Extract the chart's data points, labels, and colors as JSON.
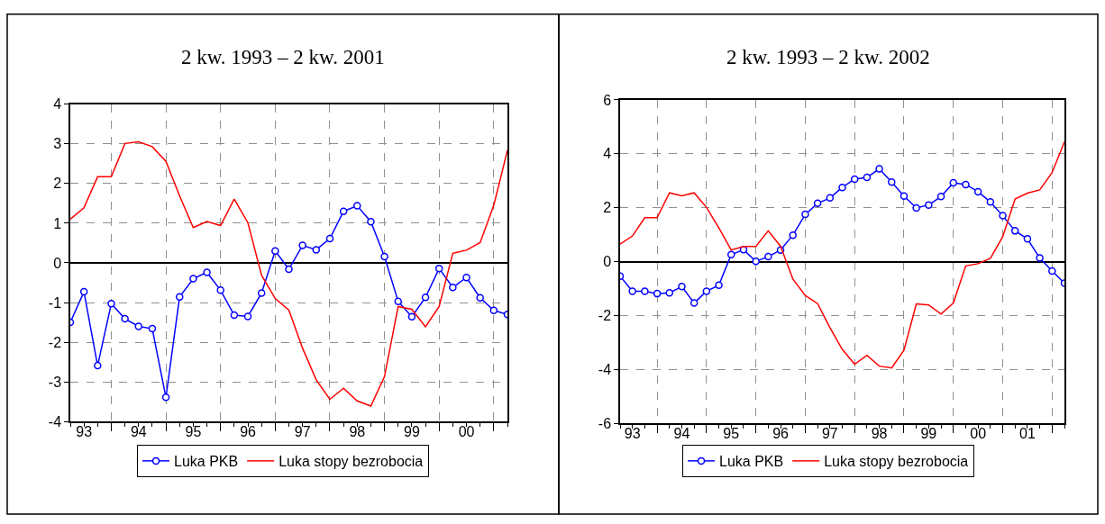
{
  "chart_data": [
    {
      "type": "line",
      "title": "2 kw. 1993 – 2 kw. 2001",
      "categories": [
        null,
        "93",
        null,
        null,
        null,
        "94",
        null,
        null,
        null,
        "95",
        null,
        null,
        null,
        "96",
        null,
        null,
        null,
        "97",
        null,
        null,
        null,
        "98",
        null,
        null,
        null,
        "99",
        null,
        null,
        null,
        "00",
        null,
        null,
        null
      ],
      "series": [
        {
          "name": "Luka PKB",
          "color": "#0000ff",
          "marker": "circle",
          "values": [
            -1.5,
            -0.73,
            -2.59,
            -1.03,
            -1.41,
            -1.6,
            -1.66,
            -3.39,
            -0.86,
            -0.4,
            -0.24,
            -0.69,
            -1.32,
            -1.35,
            -0.76,
            0.3,
            -0.16,
            0.44,
            0.33,
            0.61,
            1.3,
            1.44,
            1.04,
            0.16,
            -0.97,
            -1.36,
            -0.87,
            -0.14,
            -0.62,
            -0.37,
            -0.88,
            -1.2,
            -1.3
          ]
        },
        {
          "name": "Luka stopy bezrobocia",
          "color": "#ff0000",
          "marker": "none",
          "values": [
            1.1,
            1.39,
            2.17,
            2.17,
            3.01,
            3.05,
            2.93,
            2.56,
            1.69,
            0.89,
            1.04,
            0.94,
            1.61,
            1.01,
            -0.31,
            -0.9,
            -1.19,
            -2.15,
            -2.95,
            -3.44,
            -3.16,
            -3.48,
            -3.61,
            -2.87,
            -1.1,
            -1.17,
            -1.61,
            -1.1,
            0.24,
            0.32,
            0.51,
            1.45,
            2.84
          ]
        }
      ],
      "ylim": [
        -4,
        4
      ],
      "yticks": [
        -4,
        -3,
        -2,
        -1,
        0,
        1,
        2,
        3,
        4
      ],
      "grid": true,
      "legend": "bottom"
    },
    {
      "type": "line",
      "title": "2 kw. 1993 – 2 kw. 2002",
      "categories": [
        null,
        "93",
        null,
        null,
        null,
        "94",
        null,
        null,
        null,
        "95",
        null,
        null,
        null,
        "96",
        null,
        null,
        null,
        "97",
        null,
        null,
        null,
        "98",
        null,
        null,
        null,
        "99",
        null,
        null,
        null,
        "00",
        null,
        null,
        null,
        "01",
        null,
        null,
        null
      ],
      "series": [
        {
          "name": "Luka PKB",
          "color": "#0000ff",
          "marker": "circle",
          "values": [
            -0.54,
            -1.1,
            -1.1,
            -1.19,
            -1.16,
            -0.93,
            -1.54,
            -1.1,
            -0.88,
            0.26,
            0.44,
            0.01,
            0.18,
            0.43,
            0.98,
            1.75,
            2.16,
            2.36,
            2.75,
            3.06,
            3.12,
            3.44,
            2.95,
            2.43,
            1.99,
            2.1,
            2.41,
            2.92,
            2.86,
            2.59,
            2.21,
            1.7,
            1.14,
            0.84,
            0.13,
            -0.35,
            -0.8
          ]
        },
        {
          "name": "Luka stopy bezrobocia",
          "color": "#ff0000",
          "marker": "none",
          "values": [
            0.65,
            0.95,
            1.63,
            1.63,
            2.55,
            2.44,
            2.55,
            2.01,
            1.25,
            0.43,
            0.56,
            0.56,
            1.14,
            0.57,
            -0.65,
            -1.26,
            -1.56,
            -2.45,
            -3.26,
            -3.81,
            -3.48,
            -3.88,
            -3.95,
            -3.29,
            -1.57,
            -1.61,
            -1.95,
            -1.54,
            -0.16,
            -0.08,
            0.12,
            0.92,
            2.32,
            2.54,
            2.66,
            3.3,
            4.44
          ]
        }
      ],
      "ylim": [
        -6,
        6
      ],
      "yticks": [
        -6,
        -4,
        -2,
        0,
        2,
        4,
        6
      ],
      "grid": true,
      "legend": "bottom"
    }
  ]
}
